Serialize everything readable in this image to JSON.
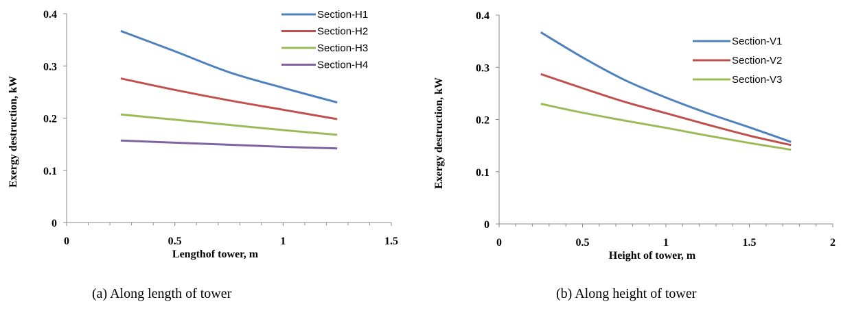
{
  "chart_data": [
    {
      "type": "line",
      "xlabel": "Lengthof tower, m",
      "ylabel": "Exergy destruction, kW",
      "xlim": [
        0,
        1.5
      ],
      "ylim": [
        0,
        0.4
      ],
      "xticks": [
        "0",
        "0.5",
        "1",
        "1.5"
      ],
      "yticks": [
        "0",
        "0.1",
        "0.2",
        "0.3",
        "0.4"
      ],
      "grid": false,
      "legend_position": "top-right",
      "series": [
        {
          "name": "Section-H1",
          "color": "#4F81BD",
          "x": [
            0.25,
            0.5,
            0.75,
            1.0,
            1.25
          ],
          "y": [
            0.367,
            0.328,
            0.288,
            0.258,
            0.23
          ]
        },
        {
          "name": "Section-H2",
          "color": "#C0504D",
          "x": [
            0.25,
            0.5,
            0.75,
            1.0,
            1.25
          ],
          "y": [
            0.276,
            0.254,
            0.234,
            0.216,
            0.198
          ]
        },
        {
          "name": "Section-H3",
          "color": "#9BBB59",
          "x": [
            0.25,
            0.5,
            0.75,
            1.0,
            1.25
          ],
          "y": [
            0.207,
            0.197,
            0.187,
            0.177,
            0.168
          ]
        },
        {
          "name": "Section-H4",
          "color": "#8064A2",
          "x": [
            0.25,
            0.5,
            0.75,
            1.0,
            1.25
          ],
          "y": [
            0.157,
            0.153,
            0.149,
            0.145,
            0.142
          ]
        }
      ],
      "caption": "(a) Along length of tower"
    },
    {
      "type": "line",
      "xlabel": "Height of tower, m",
      "ylabel": "Exergy destruction, kW",
      "xlim": [
        0,
        2
      ],
      "ylim": [
        0,
        0.4
      ],
      "xticks": [
        "0",
        "0.5",
        "1",
        "1.5",
        "2"
      ],
      "yticks": [
        "0",
        "0.1",
        "0.2",
        "0.3",
        "0.4"
      ],
      "grid": false,
      "legend_position": "top-right",
      "series": [
        {
          "name": "Section-V1",
          "color": "#4F81BD",
          "x": [
            0.25,
            0.5,
            0.75,
            1.0,
            1.25,
            1.5,
            1.75
          ],
          "y": [
            0.367,
            0.319,
            0.276,
            0.242,
            0.212,
            0.185,
            0.157
          ]
        },
        {
          "name": "Section-V2",
          "color": "#C0504D",
          "x": [
            0.25,
            0.5,
            0.75,
            1.0,
            1.25,
            1.5,
            1.75
          ],
          "y": [
            0.287,
            0.26,
            0.234,
            0.212,
            0.19,
            0.169,
            0.151
          ]
        },
        {
          "name": "Section-V3",
          "color": "#9BBB59",
          "x": [
            0.25,
            0.5,
            0.75,
            1.0,
            1.25,
            1.5,
            1.75
          ],
          "y": [
            0.23,
            0.213,
            0.198,
            0.184,
            0.169,
            0.155,
            0.142
          ]
        }
      ],
      "caption": "(b) Along height of tower"
    }
  ]
}
